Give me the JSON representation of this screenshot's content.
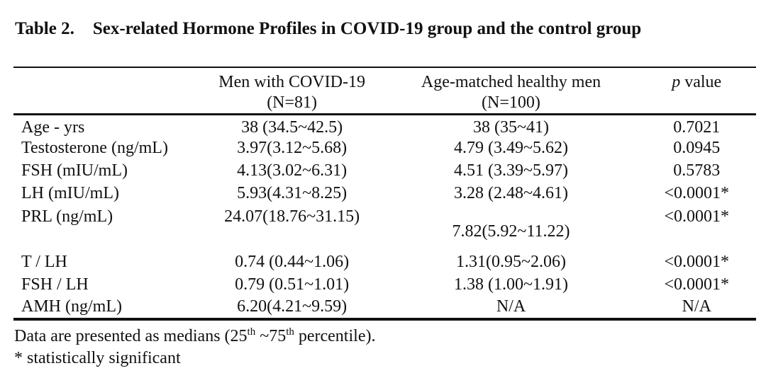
{
  "title": {
    "label": "Table 2.",
    "text": "Sex-related Hormone Profiles in COVID-19 group and the control group"
  },
  "table": {
    "header": {
      "col2_line1": "Men with COVID-19",
      "col2_line2": "(N=81)",
      "col3_line1": "Age-matched healthy men",
      "col3_line2": "(N=100)",
      "p_italic": "p",
      "p_rest": " value"
    },
    "rows": [
      {
        "label": "Age - yrs",
        "covid": "38 (34.5~42.5)",
        "healthy": "38 (35~41)",
        "p": "0.7021"
      },
      {
        "label": "Testosterone (ng/mL)",
        "covid": "3.97(3.12~5.68)",
        "healthy": "4.79 (3.49~5.62)",
        "p": "0.0945"
      },
      {
        "label": "FSH (mIU/mL)",
        "covid": "4.13(3.02~6.31)",
        "healthy": "4.51 (3.39~5.97)",
        "p": "0.5783"
      },
      {
        "label": "LH (mIU/mL)",
        "covid": "5.93(4.31~8.25)",
        "healthy": "3.28 (2.48~4.61)",
        "p": "<0.0001*"
      },
      {
        "label": "PRL (ng/mL)",
        "covid": "24.07(18.76~31.15)",
        "healthy": "7.82(5.92~11.22)",
        "p": "<0.0001*"
      },
      {
        "label": "T / LH",
        "covid": "0.74 (0.44~1.06)",
        "healthy": "1.31(0.95~2.06)",
        "p": "<0.0001*"
      },
      {
        "label": "FSH / LH",
        "covid": "0.79 (0.51~1.01)",
        "healthy": "1.38 (1.00~1.91)",
        "p": "<0.0001*"
      },
      {
        "label": "AMH (ng/mL)",
        "covid": "6.20(4.21~9.59)",
        "healthy": "N/A",
        "p": "N/A"
      }
    ]
  },
  "footnotes": {
    "l1_a": "Data are presented as medians (25",
    "l1_sup1": "th",
    "l1_b": " ~75",
    "l1_sup2": "th",
    "l1_c": " percentile).",
    "line2": "* statistically significant"
  },
  "colors": {
    "text": "#111111",
    "background": "#ffffff",
    "rule": "#111111"
  }
}
